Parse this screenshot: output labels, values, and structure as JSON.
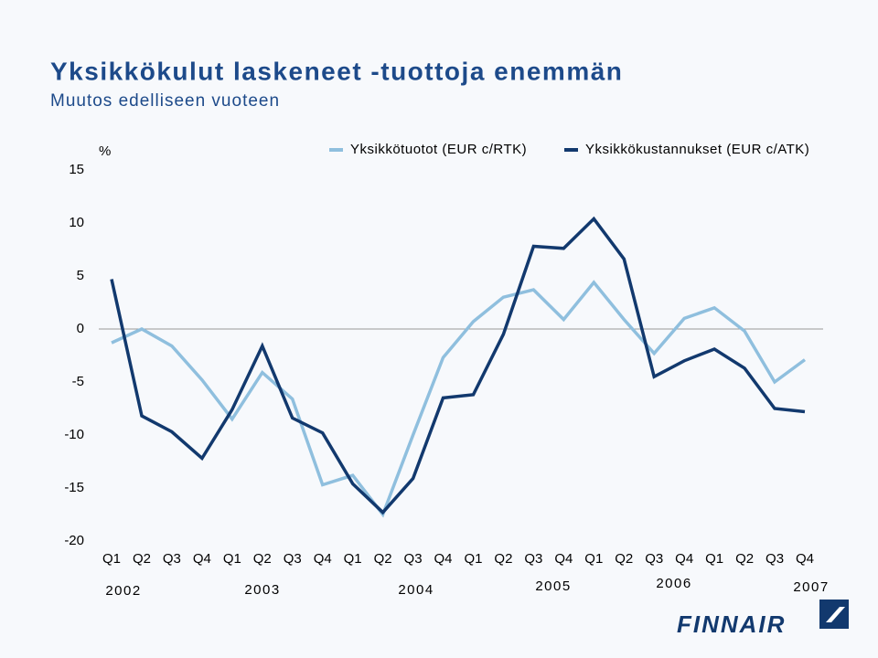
{
  "chart_data": {
    "type": "line",
    "title": "Yksikkökulut laskeneet -tuottoja enemmän",
    "subtitle": "Muutos edelliseen vuoteen",
    "y_unit_label": "%",
    "categories": [
      "Q1",
      "Q2",
      "Q3",
      "Q4",
      "Q1",
      "Q2",
      "Q3",
      "Q4",
      "Q1",
      "Q2",
      "Q3",
      "Q4",
      "Q1",
      "Q2",
      "Q3",
      "Q4",
      "Q1",
      "Q2",
      "Q3",
      "Q4",
      "Q1",
      "Q2",
      "Q3",
      "Q4"
    ],
    "year_labels": [
      "2002",
      "2003",
      "2004",
      "2005",
      "2006",
      "2007"
    ],
    "series": [
      {
        "name": "Yksikkötuotot (EUR c/RTK)",
        "color": "#8fbfde",
        "values": [
          -1.3,
          0,
          -1.6,
          -4.8,
          -8.5,
          -4.1,
          -6.6,
          -14.7,
          -13.8,
          -17.5,
          -10,
          -2.7,
          0.7,
          3,
          3.7,
          0.9,
          4.4,
          0.9,
          -2.3,
          1,
          2,
          -0.2,
          -5,
          -2.9
        ]
      },
      {
        "name": "Yksikkökustannukset (EUR c/ATK)",
        "color": "#12396e",
        "values": [
          4.7,
          -8.2,
          -9.7,
          -12.2,
          -7.6,
          -1.6,
          -8.4,
          -9.8,
          -14.6,
          -17.3,
          -14.1,
          -6.5,
          -6.2,
          -0.5,
          7.8,
          7.6,
          10.4,
          6.6,
          -4.5,
          -3,
          -1.9,
          -3.7,
          -7.5,
          -7.8
        ]
      }
    ],
    "ylim": [
      -20,
      15
    ],
    "yticks": [
      -20,
      -15,
      -10,
      -5,
      0,
      5,
      10,
      15
    ],
    "logo": "FINNAIR"
  }
}
